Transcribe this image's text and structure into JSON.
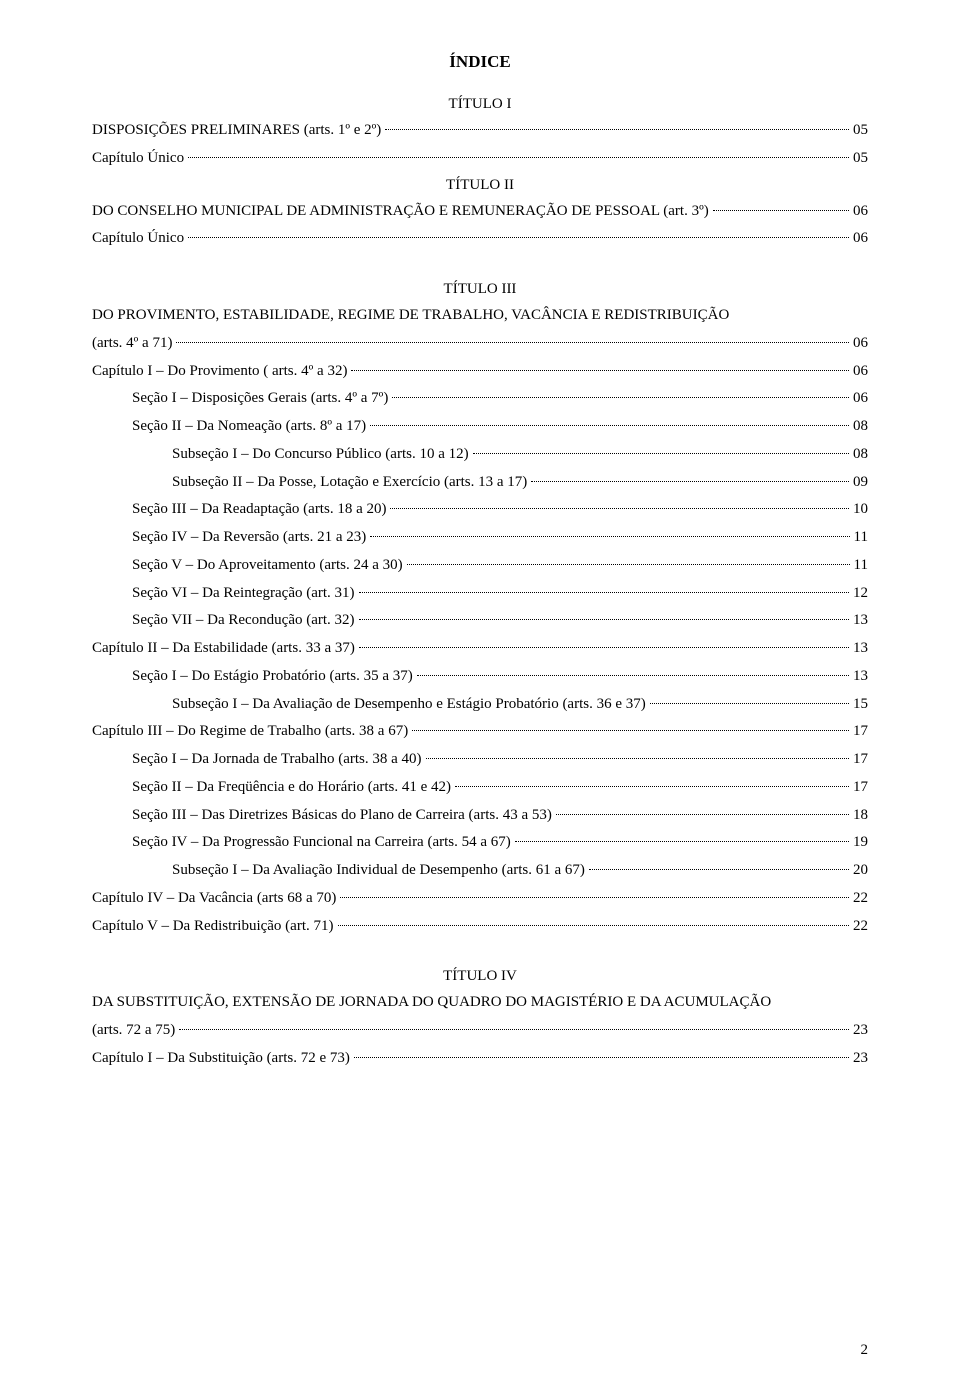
{
  "mainTitle": "ÍNDICE",
  "sections": [
    {
      "heading": "TÍTULO I",
      "entries": [
        {
          "label": "DISPOSIÇÕES PRELIMINARES (arts. 1º e 2º)",
          "page": "05",
          "indent": 0
        },
        {
          "label": "Capítulo Único",
          "page": "05",
          "indent": 0
        }
      ]
    },
    {
      "heading": "TÍTULO II",
      "entries": [
        {
          "label": "DO CONSELHO MUNICIPAL DE ADMINISTRAÇÃO E REMUNERAÇÃO DE PESSOAL (art. 3º)",
          "page": "06",
          "indent": 0
        },
        {
          "label": "Capítulo Único",
          "page": "06",
          "indent": 0
        }
      ]
    },
    {
      "heading": "TÍTULO III",
      "plain": [
        "DO PROVIMENTO, ESTABILIDADE, REGIME DE TRABALHO, VACÂNCIA E REDISTRIBUIÇÃO"
      ],
      "entries": [
        {
          "label": "(arts. 4º a 71)",
          "page": "06",
          "indent": 0
        },
        {
          "label": "Capítulo I – Do Provimento ( arts. 4º a 32)",
          "page": "06",
          "indent": 0
        },
        {
          "label": "Seção I – Disposições Gerais (arts. 4º a 7º)",
          "page": "06",
          "indent": 1
        },
        {
          "label": "Seção II – Da Nomeação (arts. 8º a 17)",
          "page": "08",
          "indent": 1
        },
        {
          "label": "Subseção I – Do Concurso Público (arts. 10 a 12)",
          "page": "08",
          "indent": 2
        },
        {
          "label": "Subseção II – Da Posse, Lotação e Exercício (arts. 13 a 17)",
          "page": "09",
          "indent": 2
        },
        {
          "label": "Seção III – Da Readaptação (arts. 18 a 20)",
          "page": "10",
          "indent": 1
        },
        {
          "label": "Seção IV – Da Reversão (arts. 21 a 23)",
          "page": "11",
          "indent": 1
        },
        {
          "label": "Seção V – Do Aproveitamento (arts. 24 a 30)",
          "page": "11",
          "indent": 1
        },
        {
          "label": "Seção VI – Da Reintegração (art. 31)",
          "page": "12",
          "indent": 1
        },
        {
          "label": "Seção VII – Da Recondução (art. 32)",
          "page": "13",
          "indent": 1
        },
        {
          "label": "Capítulo II – Da Estabilidade (arts. 33 a 37)",
          "page": "13",
          "indent": 0
        },
        {
          "label": "Seção I – Do Estágio Probatório (arts. 35 a 37)",
          "page": "13",
          "indent": 1
        },
        {
          "label": "Subseção I – Da Avaliação de Desempenho e Estágio Probatório (arts. 36 e 37)",
          "page": "15",
          "indent": 2
        },
        {
          "label": "Capítulo III – Do Regime de Trabalho (arts. 38 a 67)",
          "page": "17",
          "indent": 0
        },
        {
          "label": "Seção I – Da Jornada de Trabalho (arts. 38 a 40)",
          "page": "17",
          "indent": 1
        },
        {
          "label": "Seção II – Da Freqüência e do Horário (arts. 41 e 42)",
          "page": "17",
          "indent": 1
        },
        {
          "label": "Seção III – Das Diretrizes Básicas do Plano de Carreira (arts. 43 a 53)",
          "page": "18",
          "indent": 1
        },
        {
          "label": "Seção IV – Da Progressão Funcional na Carreira (arts. 54 a 67)",
          "page": "19",
          "indent": 1
        },
        {
          "label": "Subseção I – Da Avaliação Individual de Desempenho (arts. 61 a 67)",
          "page": "20",
          "indent": 2
        },
        {
          "label": "Capítulo IV – Da Vacância (arts 68 a 70)",
          "page": "22",
          "indent": 0
        },
        {
          "label": "Capítulo V – Da Redistribuição (art. 71)",
          "page": "22",
          "indent": 0
        }
      ]
    },
    {
      "heading": "TÍTULO IV",
      "plain": [
        "DA SUBSTITUIÇÃO, EXTENSÃO DE JORNADA DO QUADRO DO MAGISTÉRIO E DA ACUMULAÇÃO"
      ],
      "entries": [
        {
          "label": "(arts. 72 a 75)",
          "page": "23",
          "indent": 0
        },
        {
          "label": "Capítulo I – Da Substituição (arts. 72 e 73)",
          "page": "23",
          "indent": 0
        }
      ]
    }
  ],
  "pageNumber": "2"
}
